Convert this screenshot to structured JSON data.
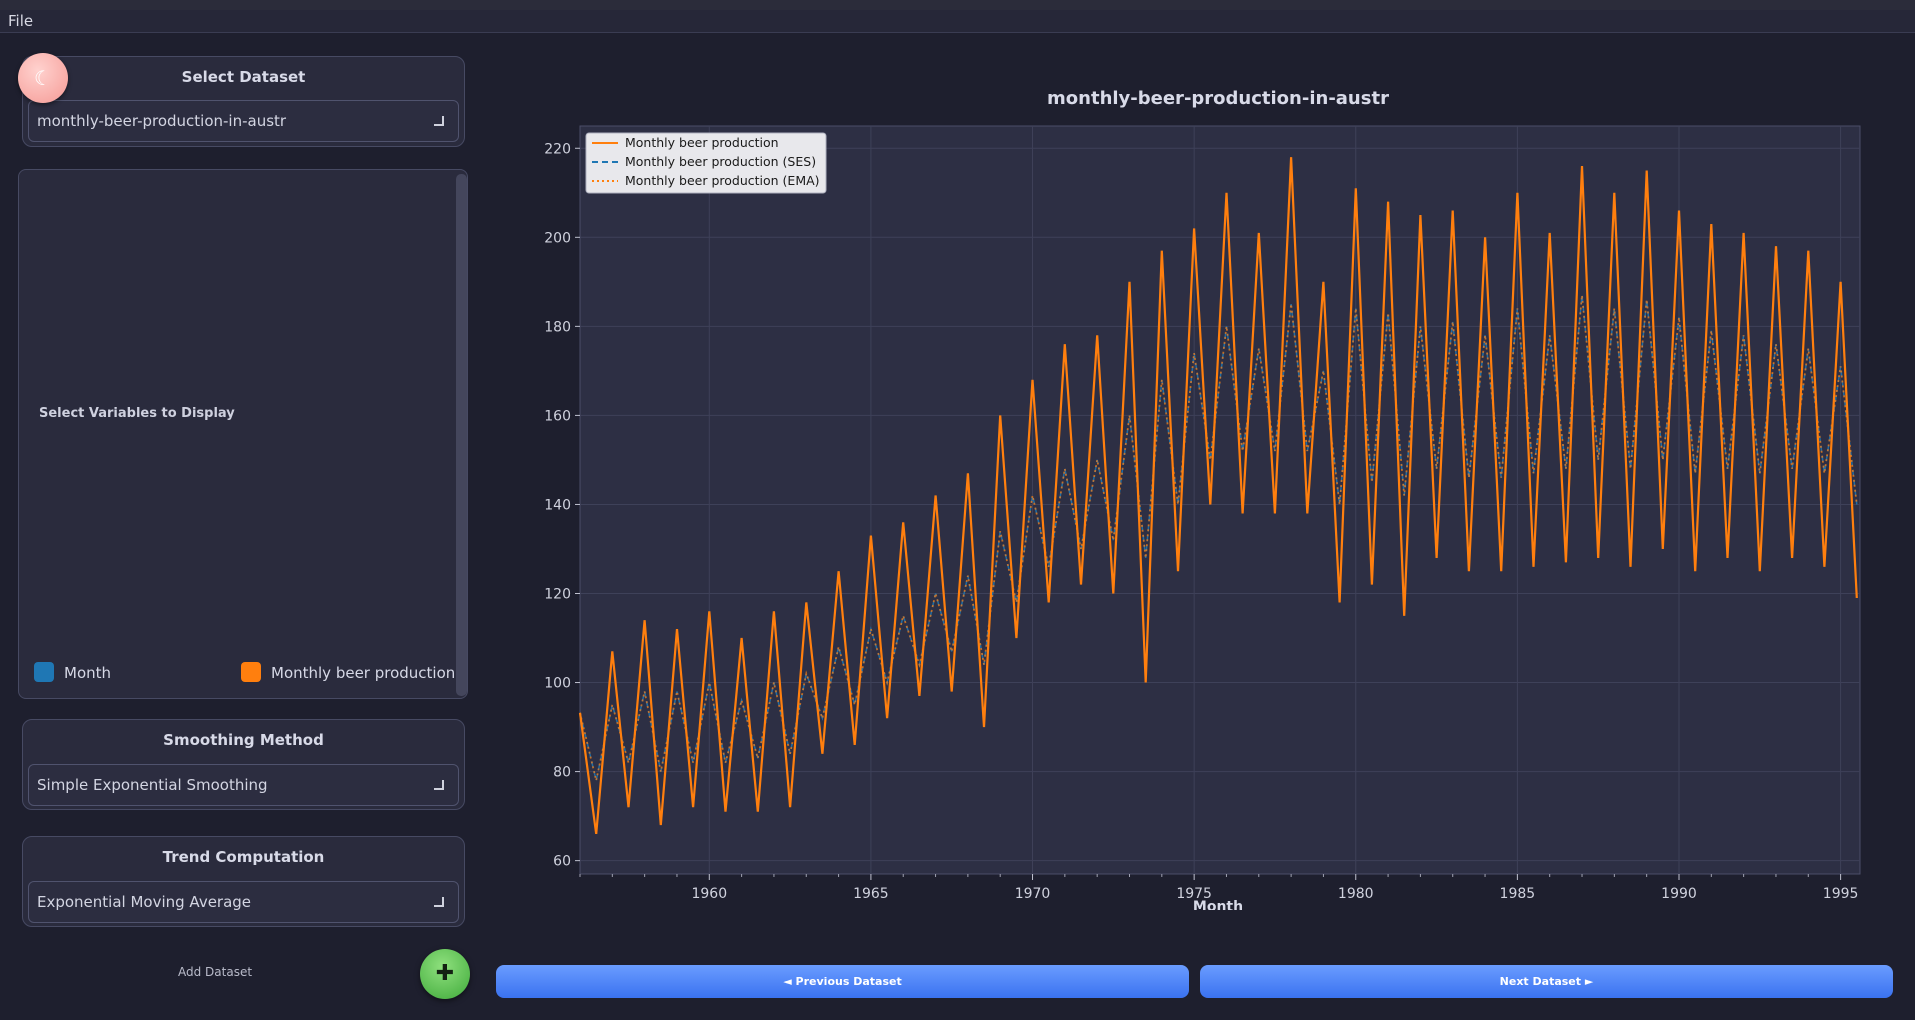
{
  "menu": {
    "file": "File"
  },
  "theme_toggle": {
    "glyph": "☾",
    "icon": "moon-icon"
  },
  "dataset_panel": {
    "title": "Select Dataset",
    "selected": "monthly-beer-production-in-austr"
  },
  "variables_panel": {
    "title": "Select Variables to Display",
    "items": [
      {
        "label": "Month",
        "color": "#1f77b4"
      },
      {
        "label": "Monthly beer production",
        "color": "#ff7f0e"
      }
    ]
  },
  "smoothing_panel": {
    "title": "Smoothing Method",
    "selected": "Simple Exponential Smoothing"
  },
  "trend_panel": {
    "title": "Trend Computation",
    "selected": "Exponential Moving Average"
  },
  "add_dataset": {
    "label": "Add Dataset",
    "glyph": "✚",
    "icon": "plus-icon"
  },
  "nav": {
    "prev": "◄ Previous Dataset",
    "next": "Next Dataset ►"
  },
  "colors": {
    "accent_blue": "#3a72f0",
    "series_orange": "#ff7f0e",
    "series_blue": "#1f77b4"
  },
  "chart_data": {
    "type": "line",
    "title": "monthly-beer-production-in-austr",
    "xlabel": "Month",
    "ylabel": "",
    "xlim": [
      1956,
      1995.6
    ],
    "ylim": [
      57,
      225
    ],
    "x_ticks": [
      1960,
      1965,
      1970,
      1975,
      1980,
      1985,
      1990,
      1995
    ],
    "y_ticks": [
      60,
      80,
      100,
      120,
      140,
      160,
      180,
      200,
      220
    ],
    "grid": true,
    "legend_position": "top-left",
    "series": [
      {
        "name": "Monthly beer production",
        "style": "solid",
        "color": "#ff7f0e"
      },
      {
        "name": "Monthly beer production (SES)",
        "style": "dashed",
        "color": "#1f77b4"
      },
      {
        "name": "Monthly beer production (EMA)",
        "style": "dotted",
        "color": "#ff7f0e"
      }
    ],
    "x": [
      1956.0,
      1956.5,
      1957.0,
      1957.5,
      1958.0,
      1958.5,
      1959.0,
      1959.5,
      1960.0,
      1960.5,
      1961.0,
      1961.5,
      1962.0,
      1962.5,
      1963.0,
      1963.5,
      1964.0,
      1964.5,
      1965.0,
      1965.5,
      1966.0,
      1966.5,
      1967.0,
      1967.5,
      1968.0,
      1968.5,
      1969.0,
      1969.5,
      1970.0,
      1970.5,
      1971.0,
      1971.5,
      1972.0,
      1972.5,
      1973.0,
      1973.5,
      1974.0,
      1974.5,
      1975.0,
      1975.5,
      1976.0,
      1976.5,
      1977.0,
      1977.5,
      1978.0,
      1978.5,
      1979.0,
      1979.5,
      1980.0,
      1980.5,
      1981.0,
      1981.5,
      1982.0,
      1982.5,
      1983.0,
      1983.5,
      1984.0,
      1984.5,
      1985.0,
      1985.5,
      1986.0,
      1986.5,
      1987.0,
      1987.5,
      1988.0,
      1988.5,
      1989.0,
      1989.5,
      1990.0,
      1990.5,
      1991.0,
      1991.5,
      1992.0,
      1992.5,
      1993.0,
      1993.5,
      1994.0,
      1994.5,
      1995.0,
      1995.5
    ],
    "y": [
      93.2,
      66,
      107,
      72,
      114,
      68,
      112,
      72,
      116,
      71,
      110,
      71,
      116,
      72,
      118,
      84,
      125,
      86,
      133,
      92,
      136,
      97,
      142,
      98,
      147,
      90,
      160,
      110,
      168,
      118,
      176,
      122,
      178,
      120,
      190,
      100,
      197,
      125,
      202,
      140,
      210,
      138,
      201,
      138,
      218,
      138,
      190,
      118,
      211,
      122,
      208,
      115,
      205,
      128,
      206,
      125,
      200,
      125,
      210,
      126,
      201,
      127,
      216,
      128,
      210,
      126,
      215,
      130,
      206,
      125,
      203,
      128,
      201,
      125,
      198,
      128,
      197,
      126,
      190,
      119
    ],
    "y_ses": [
      93.2,
      78,
      95,
      82,
      98,
      80,
      98,
      82,
      100,
      82,
      96,
      83,
      100,
      84,
      102,
      92,
      108,
      95,
      112,
      100,
      115,
      104,
      120,
      107,
      124,
      104,
      134,
      118,
      142,
      126,
      148,
      130,
      150,
      132,
      160,
      128,
      168,
      140,
      174,
      150,
      180,
      152,
      175,
      152,
      185,
      152,
      170,
      140,
      184,
      145,
      183,
      142,
      180,
      148,
      181,
      146,
      178,
      146,
      184,
      147,
      178,
      148,
      187,
      150,
      184,
      148,
      186,
      150,
      182,
      147,
      179,
      148,
      178,
      147,
      176,
      148,
      175,
      147,
      171,
      140
    ]
  }
}
